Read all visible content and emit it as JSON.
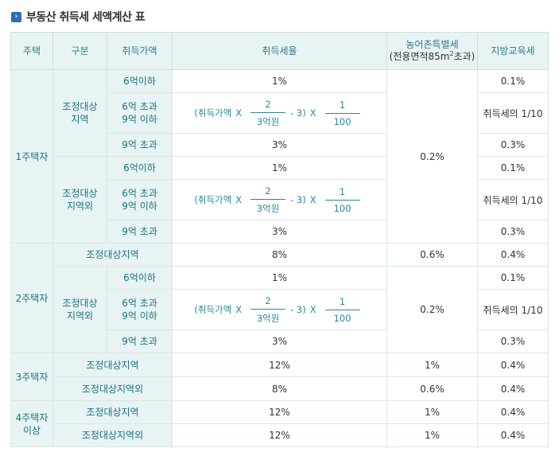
{
  "title": "부동산 취득세 세액계산 표",
  "header": {
    "col_house": "주택",
    "col_type": "구분",
    "col_price": "취득가액",
    "col_rate": "취득세율",
    "col_rural_line1": "농어촌특별세",
    "col_rural_line2a": "(전용면적85m",
    "col_rural_sup": "2",
    "col_rural_line2b": "초과)",
    "col_edu": "지방교육세"
  },
  "formula": {
    "open": "(취득가액",
    "times1": "X",
    "num": "2",
    "den": "3억원",
    "minus3": "- 3)",
    "times2": "X",
    "num2": "1",
    "den2": "100"
  },
  "rows": {
    "one_house": "1주택자",
    "adjusted_line1": "조정대상",
    "adjusted_line2": "지역",
    "nonadj_line1": "조정대상",
    "nonadj_line2": "지역외",
    "p_under6": "6억이하",
    "p_mid_line1": "6억 초과",
    "p_mid_line2": "9억 이하",
    "p_over9": "9억 초과",
    "r1": "1%",
    "r3": "3%",
    "rural_02": "0.2%",
    "edu_01": "0.1%",
    "edu_frac": "취득세의 1/10",
    "edu_03": "0.3%",
    "two_house": "2주택자",
    "two_adj": "조정대상지역",
    "two_adj_rate": "8%",
    "two_adj_rural": "0.6%",
    "two_adj_edu": "0.4%",
    "three_house": "3주택자",
    "adj_region": "조정대상지역",
    "nonadj_region": "조정대상지역외",
    "r12": "12%",
    "r8": "8%",
    "rural_1": "1%",
    "rural_06": "0.6%",
    "edu_04": "0.4%",
    "four_line1": "4주택자",
    "four_line2": "이상"
  }
}
